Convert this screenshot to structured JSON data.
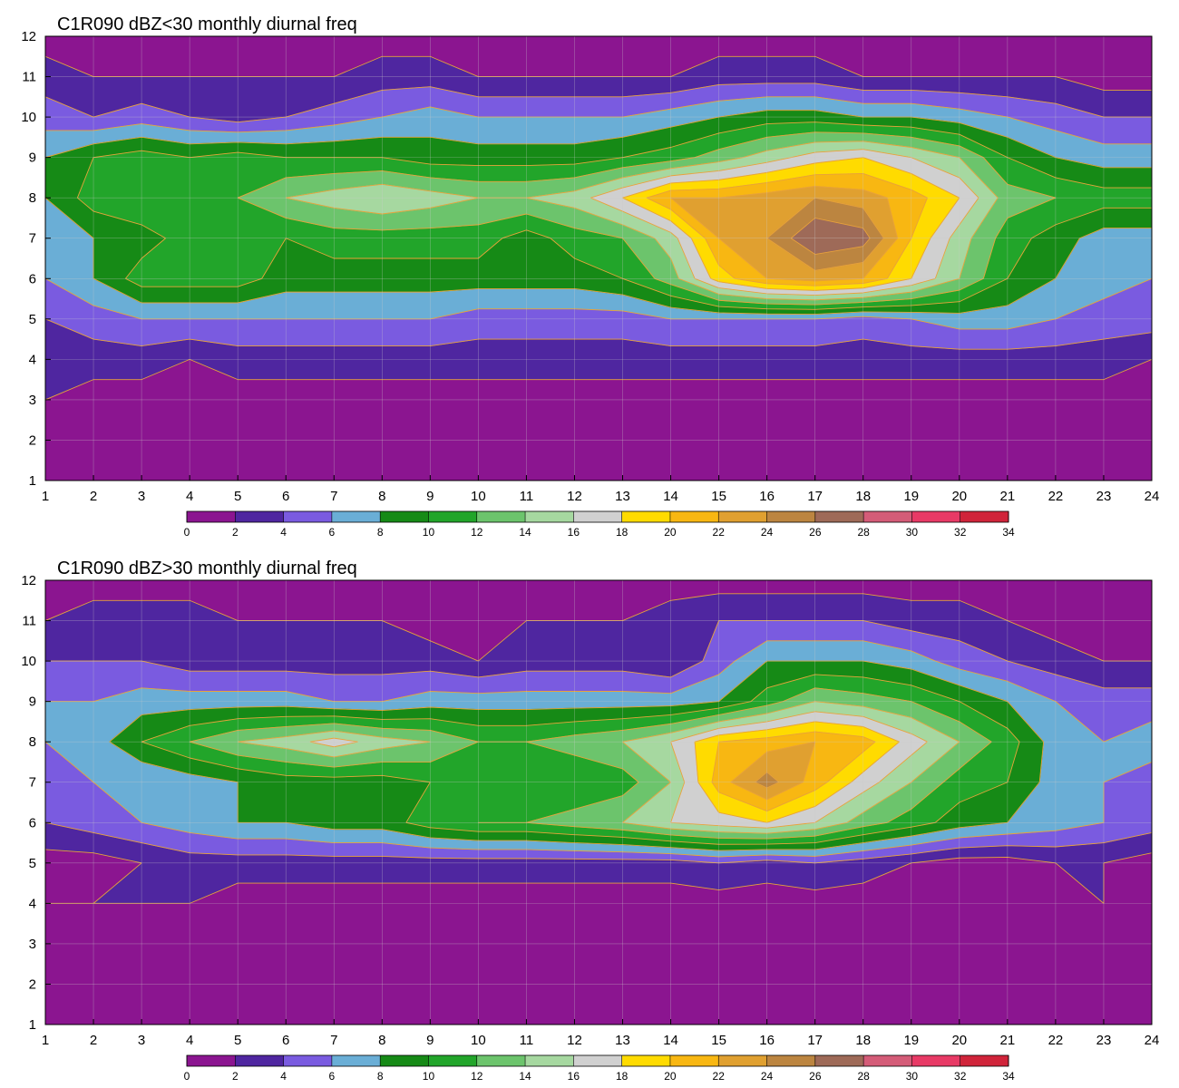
{
  "chart_data": [
    {
      "type": "contour",
      "title": "C1R090 dBZ<30 monthly diurnal freq",
      "xlim": [
        1,
        24
      ],
      "ylim": [
        1,
        12
      ],
      "x_ticks": [
        "1",
        "2",
        "3",
        "4",
        "5",
        "6",
        "7",
        "8",
        "9",
        "10",
        "11",
        "12",
        "13",
        "14",
        "15",
        "16",
        "17",
        "18",
        "19",
        "20",
        "21",
        "22",
        "23",
        "24"
      ],
      "y_ticks": [
        "1",
        "2",
        "3",
        "4",
        "5",
        "6",
        "7",
        "8",
        "9",
        "10",
        "11",
        "12"
      ],
      "grid": true,
      "colorbar": {
        "position": "bottom",
        "levels": [
          0,
          2,
          4,
          6,
          8,
          10,
          12,
          14,
          16,
          18,
          20,
          22,
          24,
          26,
          28,
          30,
          32,
          34
        ],
        "tick_labels": [
          "0",
          "2",
          "4",
          "6",
          "8",
          "10",
          "12",
          "14",
          "16",
          "18",
          "20",
          "22",
          "24",
          "26",
          "28",
          "30",
          "32",
          "34"
        ]
      },
      "x": [
        1,
        2,
        3,
        4,
        5,
        6,
        7,
        8,
        9,
        10,
        11,
        12,
        13,
        14,
        15,
        16,
        17,
        18,
        19,
        20,
        21,
        22,
        23,
        24
      ],
      "y": [
        1,
        2,
        3,
        4,
        5,
        6,
        7,
        8,
        9,
        10,
        11,
        12
      ],
      "z": [
        [
          1,
          1,
          1,
          1,
          1,
          1,
          1,
          1,
          1,
          1,
          1,
          1,
          1,
          1,
          1,
          1,
          1,
          1,
          1,
          1,
          1,
          1,
          1,
          1
        ],
        [
          1,
          1,
          1,
          1,
          1,
          1,
          1,
          1,
          1,
          1,
          1,
          1,
          1,
          1,
          1,
          1,
          1,
          1,
          1,
          1,
          1,
          1,
          1,
          1
        ],
        [
          2,
          1,
          1,
          1,
          1,
          1,
          1,
          1,
          1,
          1,
          1,
          1,
          1,
          1,
          1,
          1,
          1,
          1,
          1,
          1,
          1,
          1,
          1,
          1
        ],
        [
          3,
          3,
          3,
          2,
          3,
          3,
          3,
          3,
          3,
          3,
          3,
          3,
          3,
          3,
          3,
          3,
          3,
          3,
          3,
          3,
          3,
          3,
          3,
          2
        ],
        [
          4,
          5,
          6,
          6,
          6,
          6,
          6,
          6,
          6,
          5,
          5,
          5,
          5,
          6,
          6,
          6,
          6,
          5,
          6,
          7,
          7,
          6,
          5,
          5
        ],
        [
          6,
          8,
          11,
          11,
          11,
          9,
          9,
          9,
          9,
          9,
          9,
          9,
          10,
          13,
          19,
          22,
          23,
          22,
          18,
          14,
          10,
          8,
          7,
          6
        ],
        [
          7,
          8,
          9,
          11,
          11,
          10,
          11,
          11,
          11,
          11,
          9,
          11,
          12,
          15,
          22,
          24,
          28,
          27,
          20,
          15,
          11,
          9,
          7,
          7
        ],
        [
          8,
          11,
          12,
          11,
          12,
          14,
          15,
          16,
          15,
          14,
          14,
          15,
          18,
          22,
          22,
          23,
          24,
          23,
          21,
          18,
          13,
          12,
          11,
          11
        ],
        [
          8,
          10,
          11,
          10,
          11,
          10,
          10,
          10,
          9,
          9,
          9,
          9,
          10,
          11,
          13,
          15,
          17,
          18,
          16,
          14,
          10,
          8,
          7,
          7
        ],
        [
          5,
          4,
          5,
          4,
          3,
          4,
          5,
          6,
          7,
          6,
          6,
          6,
          6,
          7,
          8,
          9,
          9,
          8,
          8,
          7,
          6,
          5,
          4,
          4
        ],
        [
          3,
          2,
          2,
          2,
          2,
          2,
          2,
          3,
          3,
          2,
          2,
          2,
          2,
          2,
          3,
          3,
          3,
          2,
          2,
          2,
          2,
          2,
          1,
          1
        ],
        [
          1,
          1,
          1,
          1,
          1,
          1,
          1,
          1,
          1,
          1,
          1,
          1,
          1,
          1,
          1,
          1,
          1,
          1,
          1,
          1,
          1,
          1,
          1,
          1
        ]
      ]
    },
    {
      "type": "contour",
      "title": "C1R090 dBZ>30 monthly diurnal freq",
      "xlim": [
        1,
        24
      ],
      "ylim": [
        1,
        12
      ],
      "x_ticks": [
        "1",
        "2",
        "3",
        "4",
        "5",
        "6",
        "7",
        "8",
        "9",
        "10",
        "11",
        "12",
        "13",
        "14",
        "15",
        "16",
        "17",
        "18",
        "19",
        "20",
        "21",
        "22",
        "23",
        "24"
      ],
      "y_ticks": [
        "1",
        "2",
        "3",
        "4",
        "5",
        "6",
        "7",
        "8",
        "9",
        "10",
        "11",
        "12"
      ],
      "grid": true,
      "colorbar": {
        "position": "bottom",
        "levels": [
          0,
          2,
          4,
          6,
          8,
          10,
          12,
          14,
          16,
          18,
          20,
          22,
          24,
          26,
          28,
          30,
          32,
          34
        ],
        "tick_labels": [
          "0",
          "2",
          "4",
          "6",
          "8",
          "10",
          "12",
          "14",
          "16",
          "18",
          "20",
          "22",
          "24",
          "26",
          "28",
          "30",
          "32",
          "34"
        ]
      },
      "x": [
        1,
        2,
        3,
        4,
        5,
        6,
        7,
        8,
        9,
        10,
        11,
        12,
        13,
        14,
        15,
        16,
        17,
        18,
        19,
        20,
        21,
        22,
        23,
        24
      ],
      "y": [
        1,
        2,
        3,
        4,
        5,
        6,
        7,
        8,
        9,
        10,
        11,
        12
      ],
      "z": [
        [
          1,
          1,
          1,
          1,
          1,
          1,
          1,
          1,
          1,
          1,
          1,
          1,
          1,
          1,
          1,
          1,
          1,
          1,
          1,
          1,
          1,
          1,
          1,
          1
        ],
        [
          1,
          1,
          1,
          1,
          1,
          1,
          1,
          1,
          1,
          1,
          1,
          1,
          1,
          1,
          1,
          1,
          1,
          1,
          1,
          1,
          1,
          1,
          1,
          1
        ],
        [
          1,
          1,
          1,
          1,
          1,
          1,
          1,
          1,
          1,
          1,
          1,
          1,
          1,
          1,
          1,
          1,
          1,
          1,
          1,
          1,
          1,
          1,
          1,
          1
        ],
        [
          2,
          2,
          2,
          2,
          1,
          1,
          1,
          1,
          1,
          1,
          1,
          1,
          1,
          1,
          1,
          1,
          1,
          1,
          1,
          1,
          1,
          1,
          2,
          1
        ],
        [
          1,
          1,
          2,
          3,
          3,
          3,
          3,
          3,
          3,
          3,
          3,
          3,
          3,
          3,
          4,
          3,
          4,
          3,
          2,
          1,
          1,
          2,
          2,
          1
        ],
        [
          4,
          5,
          6,
          7,
          8,
          8,
          9,
          9,
          11,
          12,
          12,
          13,
          14,
          16,
          17,
          18,
          16,
          13,
          11,
          9,
          8,
          7,
          6,
          5
        ],
        [
          5,
          6,
          6,
          7,
          8,
          9,
          9,
          9,
          10,
          11,
          11,
          10,
          11,
          14,
          21,
          25,
          21,
          17,
          14,
          11,
          10,
          7,
          6,
          5
        ],
        [
          6,
          7,
          10,
          12,
          14,
          15,
          17,
          15,
          14,
          12,
          12,
          13,
          14,
          16,
          20,
          21,
          22,
          21,
          17,
          14,
          11,
          7,
          6,
          7
        ],
        [
          6,
          6,
          7,
          7,
          7,
          7,
          6,
          6,
          7,
          7,
          7,
          7,
          7,
          7,
          8,
          11,
          14,
          13,
          12,
          10,
          8,
          6,
          5,
          5
        ],
        [
          4,
          4,
          4,
          3,
          3,
          3,
          3,
          3,
          3,
          2,
          3,
          3,
          3,
          2,
          5,
          8,
          8,
          8,
          7,
          5,
          4,
          3,
          2,
          2
        ],
        [
          2,
          3,
          3,
          3,
          2,
          2,
          2,
          2,
          1,
          1,
          2,
          2,
          2,
          3,
          4,
          4,
          4,
          4,
          3,
          3,
          2,
          1,
          1,
          1
        ],
        [
          1,
          1,
          1,
          1,
          1,
          1,
          1,
          1,
          1,
          1,
          1,
          1,
          1,
          1,
          1,
          1,
          1,
          1,
          1,
          1,
          1,
          1,
          1,
          1
        ]
      ]
    }
  ],
  "colors": {
    "bands": [
      "#8b1590",
      "#4f26a0",
      "#7a5be0",
      "#6aaed6",
      "#168a16",
      "#22a52a",
      "#6cc46c",
      "#a6d8a0",
      "#d0d0d0",
      "#ffdb00",
      "#f8b712",
      "#e0a030",
      "#bc8540",
      "#9e6a58",
      "#d45c78",
      "#e83a66",
      "#d0243a"
    ],
    "contour_line": "#e8a23a",
    "grid": "#cccccc"
  }
}
